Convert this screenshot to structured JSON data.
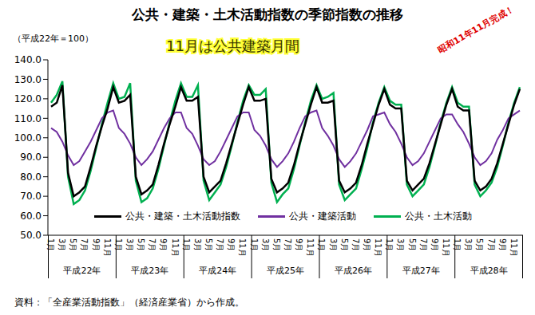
{
  "chart_data": {
    "type": "line",
    "title": "公共・建築・土木活動指数の季節指数の推移",
    "y_label": "（平成22年＝100）",
    "annotations": [
      "11月は公共建築月間",
      "昭和11年11月完成！"
    ],
    "source": "資料：「全産業活動指数」（経済産業省）から作成。",
    "categories": [
      "1月",
      null,
      "3月",
      null,
      "5月",
      null,
      "7月",
      null,
      "9月",
      null,
      "11月",
      null,
      "1月",
      null,
      "3月",
      null,
      "5月",
      null,
      "7月",
      null,
      "9月",
      null,
      "11月",
      null,
      "1月",
      null,
      "3月",
      null,
      "5月",
      null,
      "7月",
      null,
      "9月",
      null,
      "11月",
      null,
      "1月",
      null,
      "3月",
      null,
      "5月",
      null,
      "7月",
      null,
      "9月",
      null,
      "11月",
      null,
      "1月",
      null,
      "3月",
      null,
      "5月",
      null,
      "7月",
      null,
      "9月",
      null,
      "11月",
      null,
      "1月",
      null,
      "3月",
      null,
      "5月",
      null,
      "7月",
      null,
      "9月",
      null,
      "11月",
      null,
      "1月",
      null,
      "3月",
      null,
      "5月",
      null,
      "7月",
      null,
      "9月",
      null,
      "11月",
      null
    ],
    "x_groups": [
      "平成22年",
      "平成23年",
      "平成24年",
      "平成25年",
      "平成26年",
      "平成27年",
      "平成28年"
    ],
    "series": [
      {
        "name": "公共・建築・土木活動指数",
        "color": "#000000",
        "values": [
          116,
          118,
          127,
          82,
          70,
          72,
          75,
          85,
          96,
          106,
          115,
          126,
          118,
          119,
          122,
          80,
          71,
          73,
          76,
          86,
          97,
          107,
          116,
          126,
          119,
          119,
          121,
          80,
          72,
          75,
          78,
          87,
          97,
          107,
          117,
          126,
          119,
          119,
          120,
          79,
          72,
          74,
          77,
          86,
          97,
          107,
          117,
          126,
          118,
          118,
          119,
          78,
          72,
          74,
          77,
          86,
          97,
          107,
          117,
          125,
          117,
          115,
          115,
          78,
          73,
          76,
          79,
          87,
          97,
          107,
          117,
          125,
          116,
          114,
          114,
          78,
          73,
          75,
          79,
          87,
          97,
          107,
          117,
          125
        ]
      },
      {
        "name": "公共・建築活動",
        "color": "#7030a0",
        "values": [
          105,
          103,
          98,
          91,
          86,
          88,
          93,
          98,
          104,
          110,
          113,
          114,
          105,
          102,
          97,
          90,
          86,
          89,
          93,
          99,
          105,
          110,
          113,
          113,
          105,
          102,
          96,
          89,
          86,
          88,
          93,
          99,
          105,
          111,
          113,
          113,
          104,
          101,
          96,
          89,
          85,
          88,
          92,
          98,
          105,
          111,
          113,
          114,
          105,
          101,
          96,
          89,
          85,
          88,
          92,
          98,
          104,
          111,
          112,
          113,
          107,
          103,
          97,
          90,
          86,
          88,
          92,
          98,
          104,
          110,
          112,
          112,
          107,
          103,
          97,
          90,
          86,
          88,
          92,
          99,
          104,
          110,
          112,
          114
        ]
      },
      {
        "name": "公共・土木活動",
        "color": "#00b050",
        "values": [
          118,
          122,
          129,
          80,
          66,
          68,
          73,
          83,
          95,
          107,
          118,
          128,
          120,
          121,
          128,
          78,
          67,
          69,
          74,
          84,
          96,
          108,
          119,
          128,
          121,
          121,
          127,
          78,
          68,
          72,
          76,
          85,
          96,
          108,
          119,
          127,
          122,
          122,
          125,
          77,
          67,
          71,
          74,
          84,
          96,
          108,
          119,
          127,
          120,
          121,
          123,
          76,
          68,
          71,
          74,
          84,
          95,
          108,
          118,
          126,
          119,
          117,
          117,
          76,
          70,
          73,
          76,
          85,
          96,
          108,
          118,
          126,
          118,
          116,
          116,
          76,
          70,
          73,
          77,
          85,
          96,
          108,
          118,
          126
        ]
      }
    ],
    "ylim": [
      50,
      140
    ],
    "yticks": [
      {
        "value": 50,
        "label": "50.0"
      },
      {
        "value": 60,
        "label": "60.0"
      },
      {
        "value": 70,
        "label": "70.0"
      },
      {
        "value": 80,
        "label": "80.0"
      },
      {
        "value": 90,
        "label": "90.0"
      },
      {
        "value": 100,
        "label": "100.0"
      },
      {
        "value": 110,
        "label": "110.0"
      },
      {
        "value": 120,
        "label": "120.0"
      },
      {
        "value": 130,
        "label": "130.0"
      },
      {
        "value": 140,
        "label": "140.0"
      }
    ],
    "grid": false,
    "legend": "bottom"
  }
}
